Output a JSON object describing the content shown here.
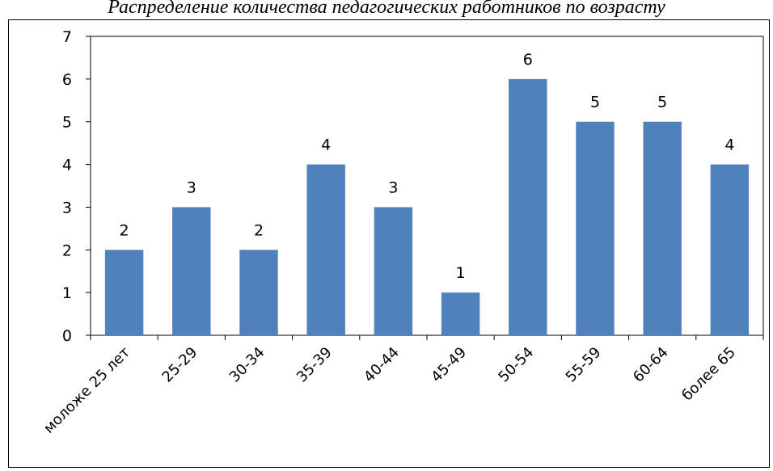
{
  "chart_data": {
    "type": "bar",
    "title": "Распределение количества педагогических работников по возрасту",
    "categories": [
      "моложе 25 лет",
      "25-29",
      "30-34",
      "35-39",
      "40-44",
      "45-49",
      "50-54",
      "55-59",
      "60-64",
      "более 65"
    ],
    "values": [
      2,
      3,
      2,
      4,
      3,
      1,
      6,
      5,
      5,
      4
    ],
    "xlabel": "",
    "ylabel": "",
    "ylim": [
      0,
      7
    ],
    "yticks": [
      0,
      1,
      2,
      3,
      4,
      5,
      6,
      7
    ],
    "grid": false,
    "legend": "none",
    "bar_color": "#4F81BD"
  }
}
